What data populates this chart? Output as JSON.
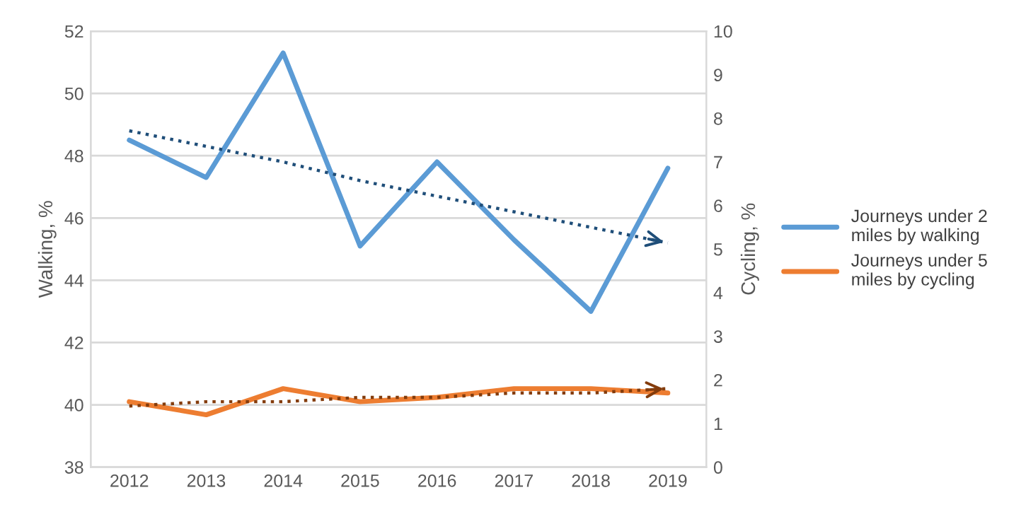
{
  "chart_data": {
    "type": "line",
    "ylabel": "Walking, %",
    "y2label": "Cycling, %",
    "categories": [
      "2012",
      "2013",
      "2014",
      "2015",
      "2016",
      "2017",
      "2018",
      "2019"
    ],
    "series": [
      {
        "name": "Journeys under 2 miles by walking",
        "color": "#5b9bd5",
        "values": [
          48.5,
          47.3,
          51.3,
          45.1,
          47.8,
          45.3,
          43.0,
          47.6
        ]
      },
      {
        "name": "Journeys under 5 miles by cycling",
        "color": "#ed7d31",
        "axis": "y2",
        "values": [
          1.5,
          1.2,
          1.8,
          1.5,
          1.6,
          1.8,
          1.8,
          1.7
        ]
      },
      {
        "type": "line",
        "color": "#1f4e79",
        "line_style": "dotted",
        "values": [
          48.8,
          48.3,
          47.8,
          47.2,
          46.7,
          46.2,
          45.7,
          45.2
        ]
      },
      {
        "type": "line",
        "color": "#843c0c",
        "line_style": "dotted",
        "axis": "y2",
        "values": [
          1.4,
          1.5,
          1.5,
          1.6,
          1.6,
          1.7,
          1.7,
          1.8
        ]
      }
    ],
    "ylim": [
      38,
      52
    ],
    "yticks": [
      38,
      40,
      42,
      44,
      46,
      48,
      50,
      52
    ],
    "y2lim": [
      0,
      10
    ],
    "y2ticks": [
      0,
      1,
      2,
      3,
      4,
      5,
      6,
      7,
      8,
      9,
      10
    ],
    "grid": "y",
    "legend": "right",
    "marker": "none"
  }
}
